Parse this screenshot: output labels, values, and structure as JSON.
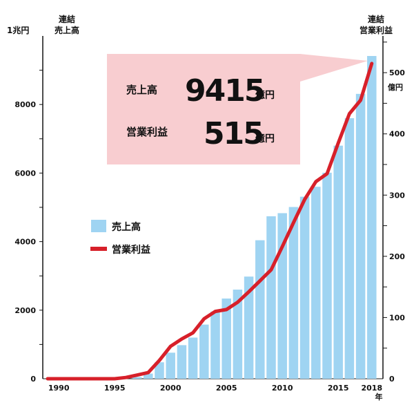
{
  "chart_data": {
    "type": "bar+line",
    "left_axis": {
      "title_lines": [
        "連結",
        "売上高"
      ],
      "unit_label": "1兆円",
      "ticks": [
        0,
        2000,
        4000,
        6000,
        8000
      ],
      "range": [
        0,
        10000
      ]
    },
    "right_axis": {
      "title_lines": [
        "連結",
        "営業利益"
      ],
      "unit_label": "億円",
      "ticks": [
        0,
        100,
        200,
        300,
        400,
        500
      ],
      "range": [
        0,
        560
      ]
    },
    "x_axis": {
      "ticks": [
        1990,
        1995,
        2000,
        2005,
        2010,
        2015,
        2018
      ],
      "suffix": "年"
    },
    "years": [
      1989,
      1990,
      1991,
      1992,
      1993,
      1994,
      1995,
      1996,
      1997,
      1998,
      1999,
      2000,
      2001,
      2002,
      2003,
      2004,
      2005,
      2006,
      2007,
      2008,
      2009,
      2010,
      2011,
      2012,
      2013,
      2014,
      2015,
      2016,
      2017,
      2018
    ],
    "series": [
      {
        "name": "売上高",
        "kind": "bar",
        "color": "#9fd4f2",
        "values": [
          0,
          0,
          0,
          0,
          0,
          0,
          0,
          0,
          50,
          150,
          480,
          760,
          980,
          1200,
          1580,
          1960,
          2340,
          2600,
          2980,
          4040,
          4740,
          4830,
          5010,
          5310,
          5600,
          6010,
          6800,
          7600,
          8310,
          9415
        ]
      },
      {
        "name": "営業利益",
        "kind": "line",
        "color": "#d7202a",
        "values": [
          0,
          0,
          0,
          0,
          0,
          0,
          0,
          2,
          6,
          10,
          30,
          53,
          65,
          75,
          98,
          110,
          113,
          125,
          142,
          160,
          178,
          216,
          255,
          293,
          322,
          335,
          385,
          433,
          455,
          515
        ]
      }
    ],
    "legend": [
      {
        "label": "売上高",
        "swatch": "box",
        "color": "#9fd4f2"
      },
      {
        "label": "営業利益",
        "swatch": "line",
        "color": "#d7202a"
      }
    ],
    "callout": {
      "rows": [
        {
          "label": "売上高",
          "value": "9415",
          "unit": "億円"
        },
        {
          "label": "営業利益",
          "value": "515",
          "unit": "億円"
        }
      ],
      "fill": "#f8cdd0"
    }
  }
}
